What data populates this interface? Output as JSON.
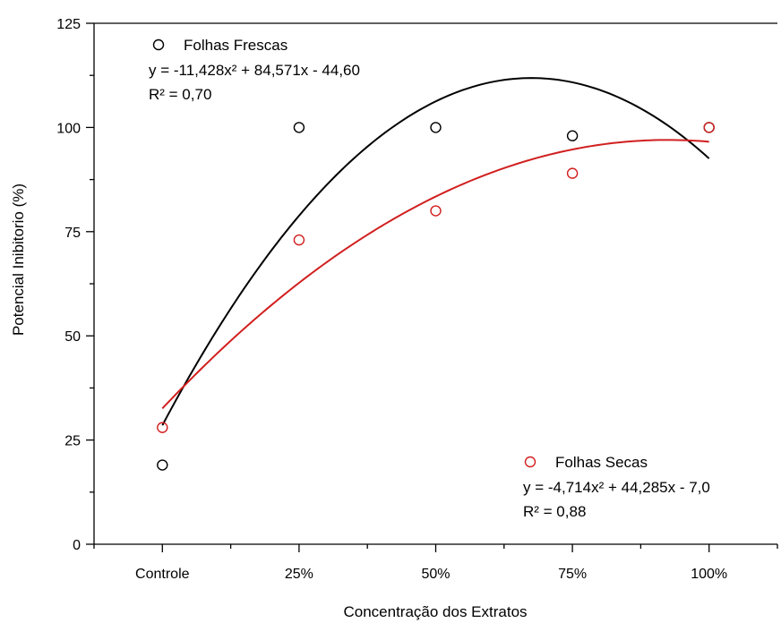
{
  "chart_data": {
    "type": "scatter",
    "xlabel": "Concentração dos Extratos",
    "ylabel": "Potencial Inibitorio (%)",
    "categories": [
      "Controle",
      "25%",
      "50%",
      "75%",
      "100%"
    ],
    "x_positions": [
      1,
      2,
      3,
      4,
      5
    ],
    "xlim": [
      0.5,
      5.5
    ],
    "ylim": [
      0,
      125
    ],
    "yticks": [
      0,
      25,
      50,
      75,
      100,
      125
    ],
    "grid": false,
    "series": [
      {
        "name": "Folhas Frescas",
        "color": "#000000",
        "values": [
          19,
          100,
          100,
          98,
          100
        ],
        "equation": "y = -11,428x² + 84,571x - 44,60",
        "r2": "R² = 0,70",
        "coef": [
          -11.428,
          84.571,
          -44.6
        ]
      },
      {
        "name": "Folhas Secas",
        "color": "#d11f1f",
        "values": [
          28,
          73,
          80,
          89,
          100
        ],
        "equation": "y = -4,714x² + 44,285x - 7,0",
        "r2": "R² = 0,88",
        "coef": [
          -4.714,
          44.285,
          -7.0
        ]
      }
    ]
  }
}
